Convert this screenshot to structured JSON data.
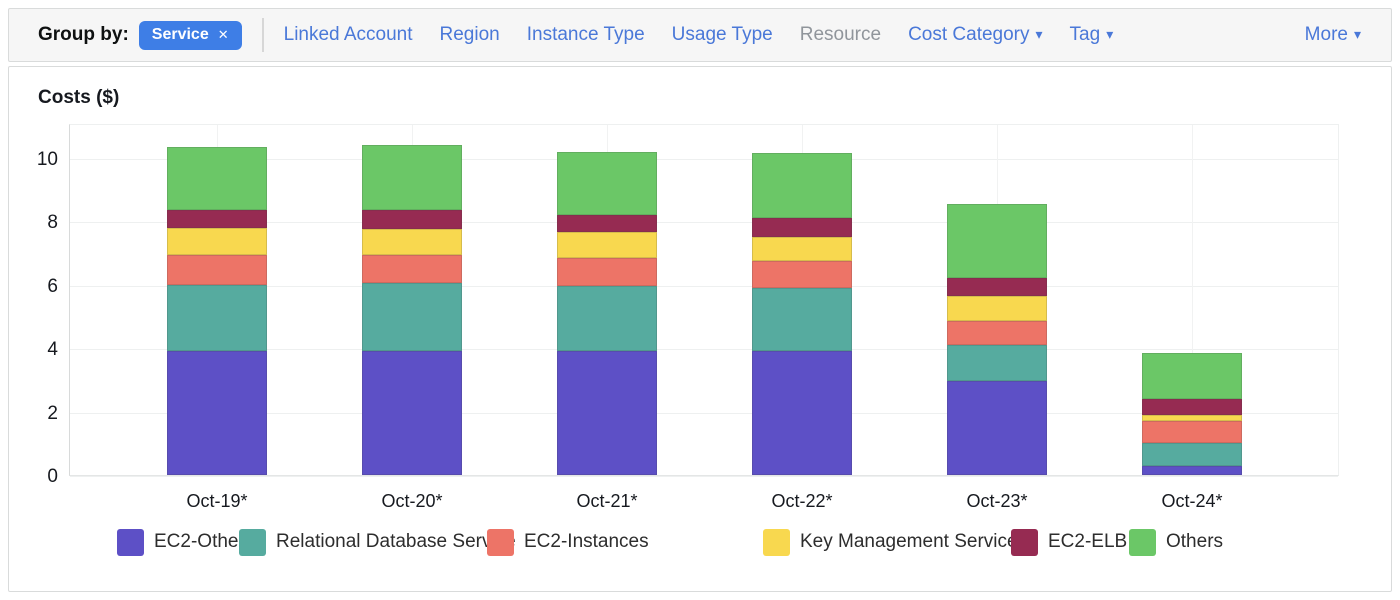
{
  "icons": {
    "remove": "✕",
    "caret_down": "▾"
  },
  "toolbar": {
    "group_by_label": "Group by:",
    "chip": {
      "label": "Service",
      "color": "#3e7ee6"
    },
    "links": [
      {
        "label": "Linked Account",
        "enabled": true,
        "dropdown": false
      },
      {
        "label": "Region",
        "enabled": true,
        "dropdown": false
      },
      {
        "label": "Instance Type",
        "enabled": true,
        "dropdown": false
      },
      {
        "label": "Usage Type",
        "enabled": true,
        "dropdown": false
      },
      {
        "label": "Resource",
        "enabled": false,
        "dropdown": false
      },
      {
        "label": "Cost Category",
        "enabled": true,
        "dropdown": true
      },
      {
        "label": "Tag",
        "enabled": true,
        "dropdown": true
      }
    ],
    "more_label": "More",
    "link_color": "#4a78d8",
    "disabled_color": "#90959b"
  },
  "chart": {
    "axis_title": "Costs ($)"
  },
  "chart_data": {
    "type": "bar",
    "stacked": true,
    "title": "Costs ($)",
    "ylabel": "Costs ($)",
    "xlabel": "",
    "categories": [
      "Oct-19*",
      "Oct-20*",
      "Oct-21*",
      "Oct-22*",
      "Oct-23*",
      "Oct-24*"
    ],
    "series": [
      {
        "name": "EC2-Other",
        "color": "#5d50c6",
        "values": [
          3.9,
          3.9,
          3.9,
          3.9,
          2.95,
          0.3
        ]
      },
      {
        "name": "Relational Database Service",
        "color": "#56ab9f",
        "values": [
          2.1,
          2.15,
          2.05,
          2.0,
          1.15,
          0.7
        ]
      },
      {
        "name": "EC2-Instances",
        "color": "#ed7467",
        "values": [
          0.95,
          0.9,
          0.9,
          0.85,
          0.75,
          0.7
        ]
      },
      {
        "name": "Key Management Service",
        "color": "#f8d84f",
        "values": [
          0.85,
          0.8,
          0.8,
          0.75,
          0.8,
          0.2
        ]
      },
      {
        "name": "EC2-ELB",
        "color": "#962b52",
        "values": [
          0.55,
          0.6,
          0.55,
          0.6,
          0.55,
          0.5
        ]
      },
      {
        "name": "Others",
        "color": "#6bc767",
        "values": [
          2.0,
          2.05,
          2.0,
          2.05,
          2.35,
          1.45
        ]
      }
    ],
    "totals": [
      10.35,
      10.4,
      10.2,
      10.15,
      8.55,
      3.85
    ],
    "yticks": [
      0,
      2,
      4,
      6,
      8,
      10
    ],
    "ylim": [
      0,
      11.1
    ],
    "grid": true,
    "legend_position": "bottom"
  }
}
